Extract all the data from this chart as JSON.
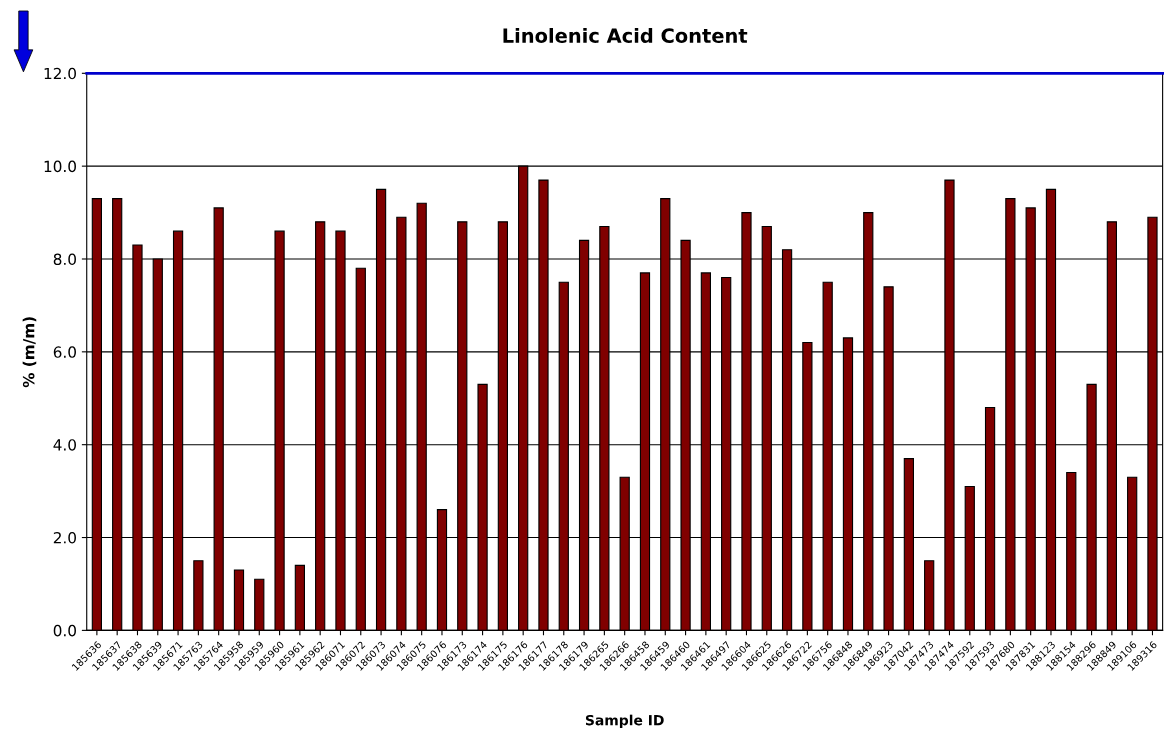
{
  "chart_data": {
    "type": "bar",
    "title": "Linolenic Acid Content",
    "xlabel": "Sample ID",
    "ylabel": "% (m/m)",
    "categories": [
      "185636",
      "185637",
      "185638",
      "185639",
      "185671",
      "185763",
      "185764",
      "185958",
      "185959",
      "185960",
      "185961",
      "185962",
      "186071",
      "186072",
      "186073",
      "186074",
      "186075",
      "186076",
      "186173",
      "186174",
      "186175",
      "186176",
      "186177",
      "186178",
      "186179",
      "186265",
      "186266",
      "186458",
      "186459",
      "186460",
      "186461",
      "186497",
      "186604",
      "186625",
      "186626",
      "186722",
      "186756",
      "186848",
      "186849",
      "186923",
      "187042",
      "187473",
      "187474",
      "187592",
      "187593",
      "187680",
      "187831",
      "188123",
      "188154",
      "188296",
      "188849",
      "189106",
      "189316"
    ],
    "values": [
      9.3,
      9.3,
      8.3,
      8.0,
      8.6,
      1.5,
      9.1,
      1.3,
      1.1,
      8.6,
      1.4,
      8.8,
      8.6,
      7.8,
      9.5,
      8.9,
      9.2,
      2.6,
      8.8,
      5.3,
      8.8,
      10.0,
      9.7,
      7.5,
      8.4,
      8.7,
      3.3,
      7.7,
      9.3,
      8.4,
      7.7,
      7.6,
      9.0,
      8.7,
      8.2,
      6.2,
      7.5,
      6.3,
      9.0,
      7.4,
      3.7,
      1.5,
      9.7,
      3.1,
      4.8,
      9.3,
      9.1,
      9.5,
      3.4,
      5.3,
      8.8,
      3.3,
      8.9
    ],
    "color": "#800000",
    "ylim": [
      0,
      12
    ],
    "yticks": [
      {
        "value": 0,
        "label": "0.0"
      },
      {
        "value": 2,
        "label": "2.0"
      },
      {
        "value": 4,
        "label": "4.0"
      },
      {
        "value": 6,
        "label": "6.0"
      },
      {
        "value": 8,
        "label": "8.0"
      },
      {
        "value": 10,
        "label": "10.0"
      },
      {
        "value": 12,
        "label": "12.0"
      }
    ],
    "grid": "y",
    "ref_lines": [
      {
        "axis": "y",
        "value": 12,
        "color": "#0000cc"
      }
    ]
  }
}
